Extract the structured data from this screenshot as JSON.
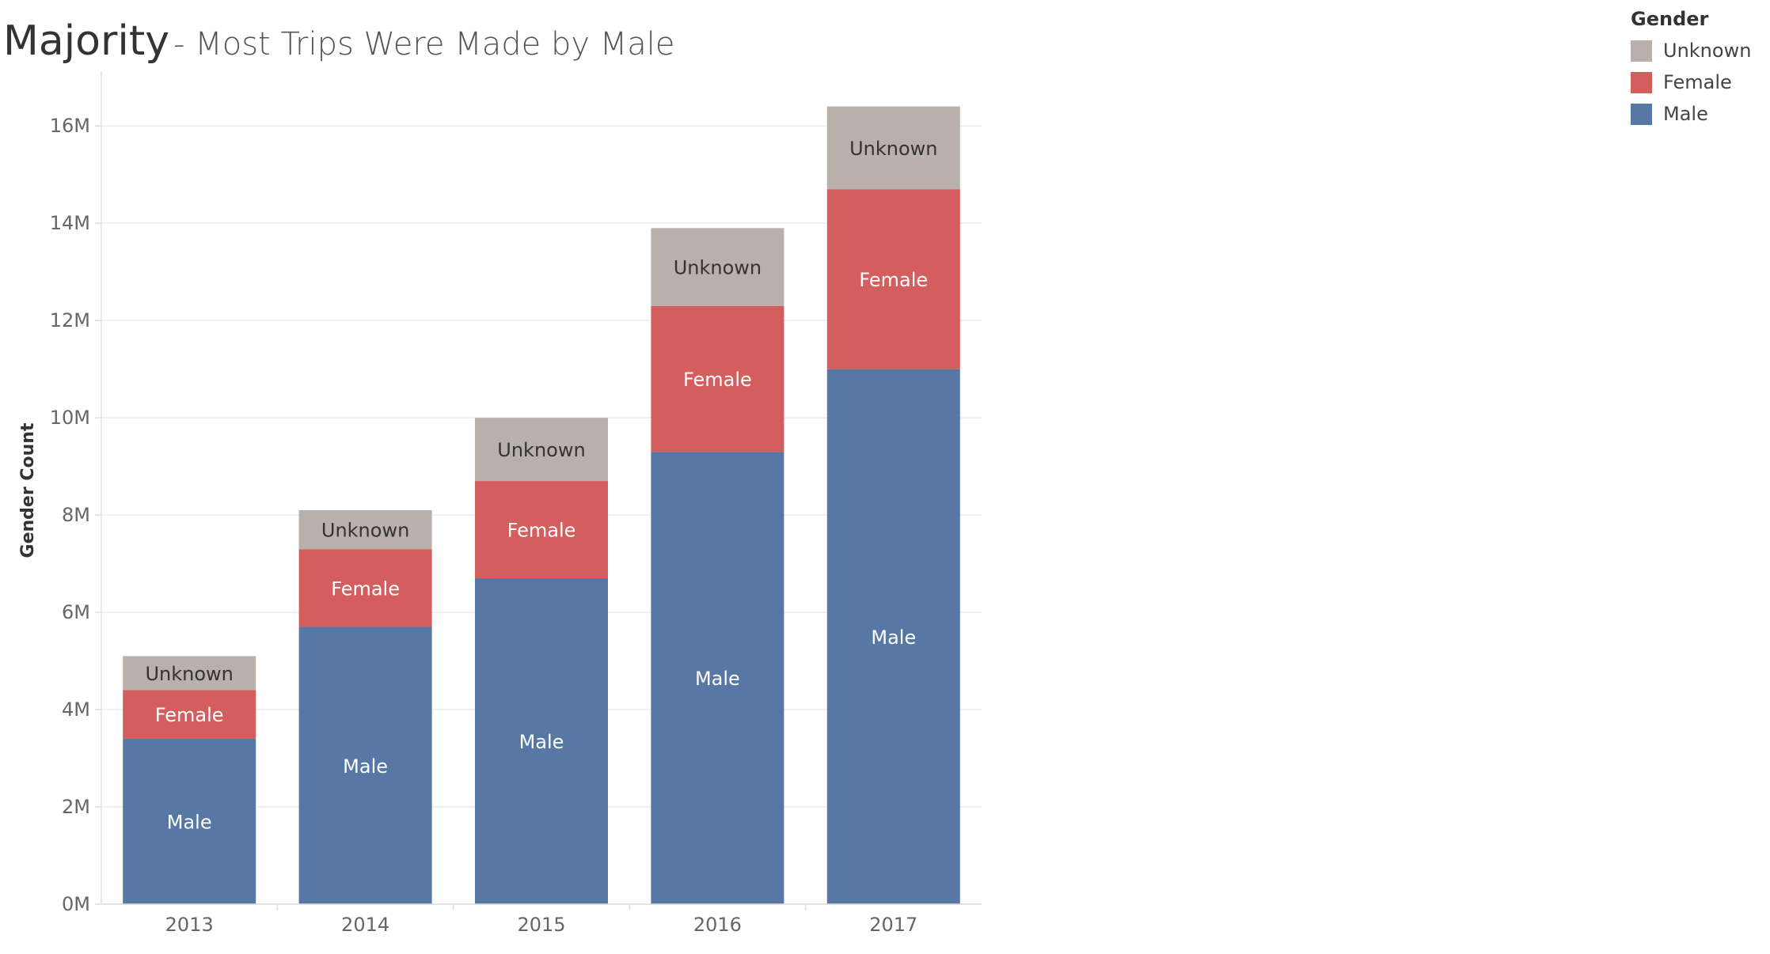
{
  "title": {
    "main": "Majority",
    "subtitle": "- Most Trips Were Made by Male"
  },
  "legend": {
    "title": "Gender",
    "items": [
      {
        "label": "Unknown",
        "color": "#b9afab"
      },
      {
        "label": "Female",
        "color": "#d45e5e"
      },
      {
        "label": "Male",
        "color": "#5778a4"
      }
    ]
  },
  "chart_data": {
    "type": "bar",
    "stacked": true,
    "categories": [
      "2013",
      "2014",
      "2015",
      "2016",
      "2017"
    ],
    "series": [
      {
        "name": "Male",
        "color": "#5778a4",
        "label_color": "#ffffff",
        "values": [
          3400000,
          5700000,
          6700000,
          9300000,
          11000000
        ]
      },
      {
        "name": "Female",
        "color": "#d45e5e",
        "label_color": "#ffffff",
        "values": [
          1000000,
          1600000,
          2000000,
          3000000,
          3700000
        ]
      },
      {
        "name": "Unknown",
        "color": "#b9afab",
        "label_color": "#333333",
        "values": [
          700000,
          800000,
          1300000,
          1600000,
          1700000
        ]
      }
    ],
    "ylabel": "Gender Count",
    "xlabel": "",
    "ylim": [
      0,
      16800000
    ],
    "y_ticks": [
      0,
      2000000,
      4000000,
      6000000,
      8000000,
      10000000,
      12000000,
      14000000,
      16000000
    ],
    "y_tick_labels": [
      "0M",
      "2M",
      "4M",
      "6M",
      "8M",
      "10M",
      "12M",
      "14M",
      "16M"
    ],
    "grid": true,
    "legend_position": "top-right"
  }
}
